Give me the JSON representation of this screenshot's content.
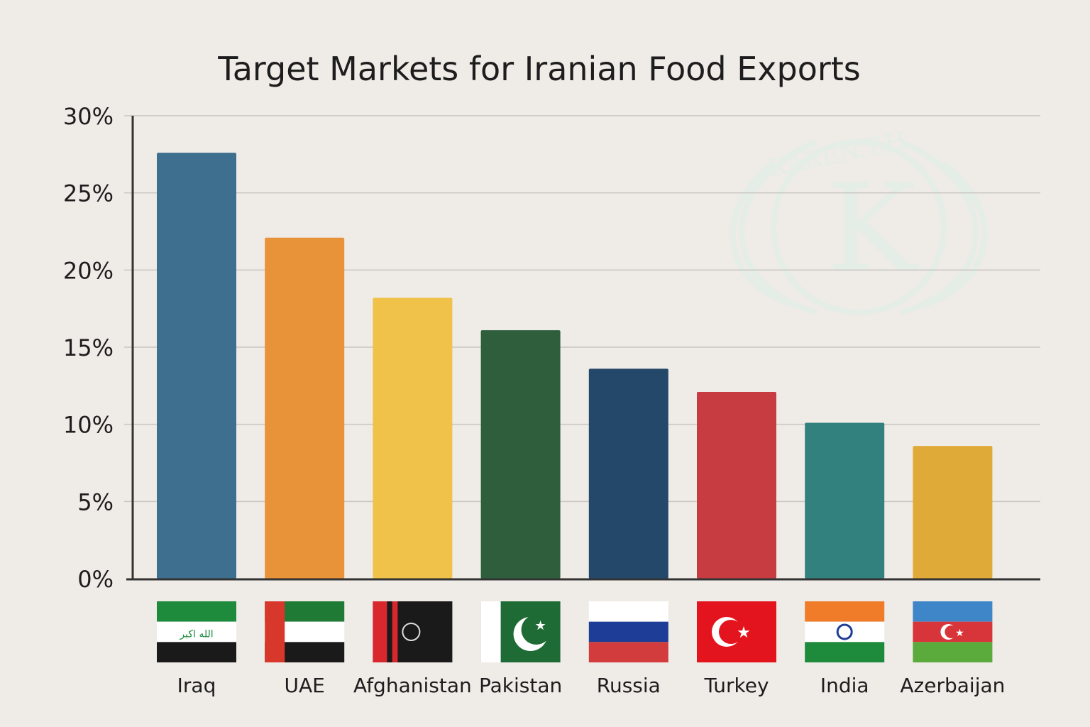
{
  "chart_data": {
    "type": "bar",
    "title": "Target Markets for Iranian Food Exports",
    "xlabel": "",
    "ylabel": "",
    "ylim": [
      0,
      30
    ],
    "yticks": [
      "0%",
      "5%",
      "10%",
      "15%",
      "20%",
      "25%",
      "30%"
    ],
    "ytick_values": [
      0,
      5,
      10,
      15,
      20,
      25,
      30
    ],
    "grid": true,
    "categories": [
      "Iraq",
      "UAE",
      "Afghanistan",
      "Pakistan",
      "Russia",
      "Turkey",
      "India",
      "Azerbaijan"
    ],
    "values": [
      27.6,
      22.1,
      18.2,
      16.1,
      13.6,
      12.1,
      10.1,
      8.6
    ],
    "colors": [
      "#3f6f8f",
      "#e8923a",
      "#f0c24a",
      "#2e5e3c",
      "#24486a",
      "#c73c40",
      "#33817f",
      "#e0aa38"
    ],
    "icons": [
      "iraq-flag-icon",
      "uae-flag-icon",
      "afghanistan-flag-icon",
      "pakistan-flag-icon",
      "russia-flag-icon",
      "turkey-flag-icon",
      "india-flag-icon",
      "azerbaijan-flag-icon"
    ]
  },
  "watermark": "KAREN.T.H"
}
